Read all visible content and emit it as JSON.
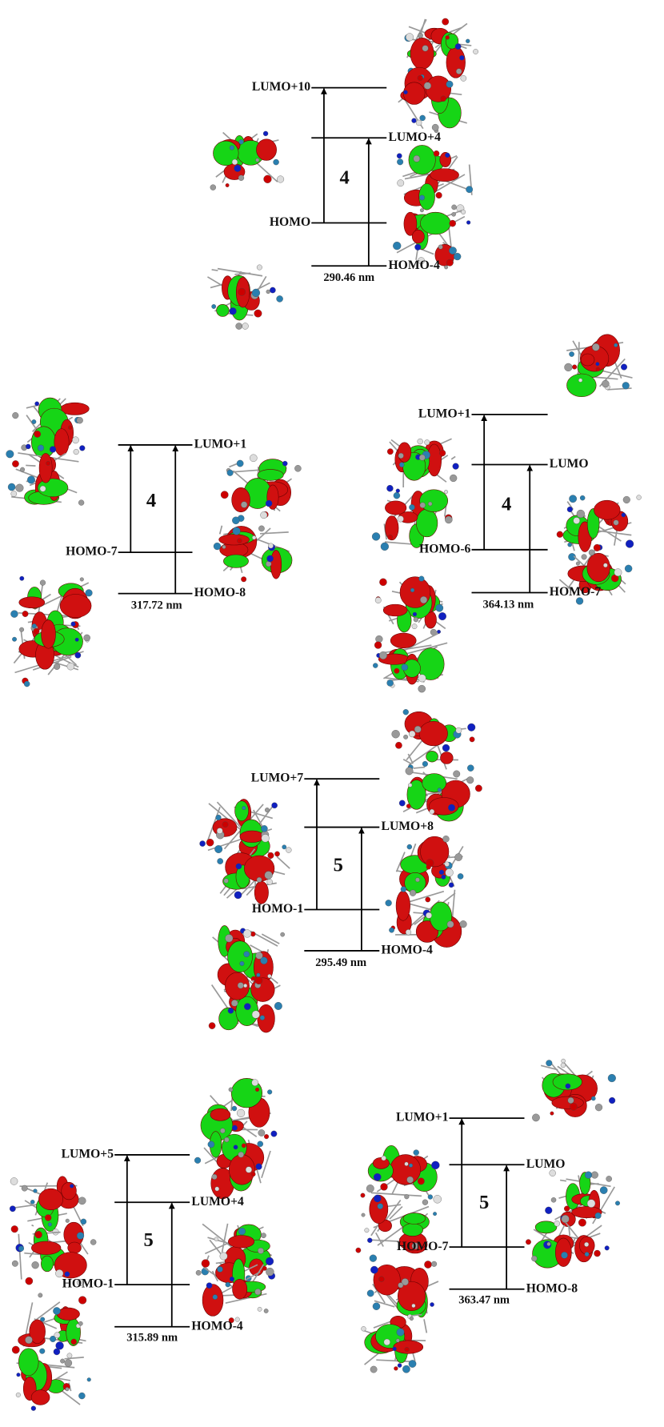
{
  "panels": [
    {
      "compound": "4",
      "wavelength": "290.46 nm",
      "levels": [
        "LUMO+10",
        "LUMO+4",
        "HOMO",
        "HOMO-4"
      ]
    },
    {
      "compound": "4",
      "wavelength": "317.72 nm",
      "levels": [
        "LUMO+1",
        "HOMO-7",
        "HOMO-8"
      ]
    },
    {
      "compound": "4",
      "wavelength": "364.13 nm",
      "levels": [
        "LUMO+1",
        "LUMO",
        "HOMO-6",
        "HOMO-7"
      ]
    },
    {
      "compound": "5",
      "wavelength": "295.49 nm",
      "levels": [
        "LUMO+7",
        "LUMO+8",
        "HOMO-1",
        "HOMO-4"
      ]
    },
    {
      "compound": "5",
      "wavelength": "315.89 nm",
      "levels": [
        "LUMO+5",
        "LUMO+4",
        "HOMO-1",
        "HOMO-4"
      ]
    },
    {
      "compound": "5",
      "wavelength": "363.47 nm",
      "levels": [
        "LUMO+1",
        "LUMO",
        "HOMO-7",
        "HOMO-8"
      ]
    }
  ]
}
